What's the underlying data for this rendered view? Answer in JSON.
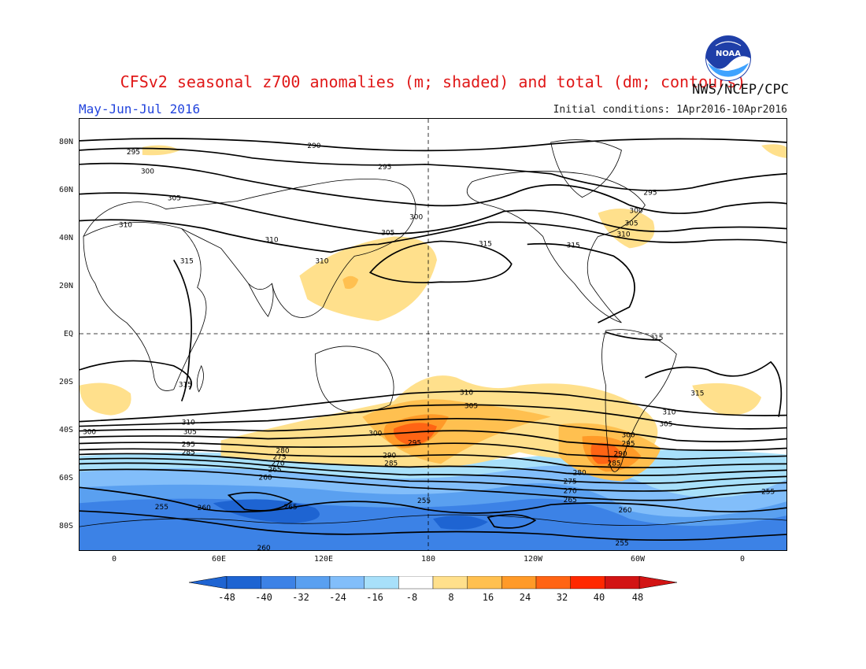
{
  "header": {
    "title": "CFSv2 seasonal z700 anomalies (m; shaded) and total (dm; contours)",
    "agency": "NWS/NCEP/CPC",
    "season": "May-Jun-Jul 2016",
    "initial_conditions": "Initial conditions: 1Apr2016-10Apr2016"
  },
  "logo": {
    "icon": "noaa-logo-icon",
    "text": "NOAA"
  },
  "axes": {
    "lat_labels": [
      "80N",
      "60N",
      "40N",
      "20N",
      "EQ",
      "20S",
      "40S",
      "60S",
      "80S"
    ],
    "lon_labels": [
      "0",
      "60E",
      "120E",
      "180",
      "120W",
      "60W",
      "0"
    ]
  },
  "colorbar": {
    "tick_labels": [
      "-48",
      "-40",
      "-32",
      "-24",
      "-16",
      "-8",
      "8",
      "16",
      "24",
      "32",
      "40",
      "48"
    ],
    "colors": [
      "#1e64d2",
      "#3c82e6",
      "#5aa0f0",
      "#82befa",
      "#a8e0fa",
      "#ffffff",
      "#ffe08c",
      "#ffc050",
      "#ff9a28",
      "#ff6414",
      "#ff2800",
      "#d21414"
    ]
  },
  "contour_labels": [
    {
      "id": "c290-n",
      "text": "290"
    },
    {
      "id": "c295-nw",
      "text": "295"
    },
    {
      "id": "c295-n",
      "text": "295"
    },
    {
      "id": "c295-ne",
      "text": "295"
    },
    {
      "id": "c300-nw",
      "text": "300"
    },
    {
      "id": "c300-n",
      "text": "300"
    },
    {
      "id": "c300-ne",
      "text": "300"
    },
    {
      "id": "c305-nw",
      "text": "305"
    },
    {
      "id": "c305-n",
      "text": "305"
    },
    {
      "id": "c305-ne",
      "text": "305"
    },
    {
      "id": "c310-nw",
      "text": "310"
    },
    {
      "id": "c310-asia",
      "text": "310"
    },
    {
      "id": "c310-tib",
      "text": "310"
    },
    {
      "id": "c310-ne",
      "text": "310"
    },
    {
      "id": "c315-af",
      "text": "315"
    },
    {
      "id": "c315-pac",
      "text": "315"
    },
    {
      "id": "c315-atl",
      "text": "315"
    },
    {
      "id": "c315-sa",
      "text": "315"
    },
    {
      "id": "c315-saf",
      "text": "315"
    },
    {
      "id": "c315-satl",
      "text": "315"
    },
    {
      "id": "c310-s1",
      "text": "310"
    },
    {
      "id": "c310-s2",
      "text": "310"
    },
    {
      "id": "c305-s1",
      "text": "305"
    },
    {
      "id": "c305-s2",
      "text": "305"
    },
    {
      "id": "c305-s3",
      "text": "305"
    },
    {
      "id": "c310-s3",
      "text": "310"
    },
    {
      "id": "c300-s1",
      "text": "300"
    },
    {
      "id": "c300-s2",
      "text": "300"
    },
    {
      "id": "c300-s3",
      "text": "300"
    },
    {
      "id": "c295-s1",
      "text": "295"
    },
    {
      "id": "c295-s2",
      "text": "295"
    },
    {
      "id": "c295-s3",
      "text": "295"
    },
    {
      "id": "c290-s1",
      "text": "290"
    },
    {
      "id": "c290-s2",
      "text": "290"
    },
    {
      "id": "c285-s1",
      "text": "285"
    },
    {
      "id": "c285-s2",
      "text": "285"
    },
    {
      "id": "c285-s3",
      "text": "285"
    },
    {
      "id": "c280-s1",
      "text": "280"
    },
    {
      "id": "c280-s2",
      "text": "280"
    },
    {
      "id": "c275-s1",
      "text": "275"
    },
    {
      "id": "c275-s2",
      "text": "275"
    },
    {
      "id": "c270-s1",
      "text": "270"
    },
    {
      "id": "c270-s2",
      "text": "270"
    },
    {
      "id": "c265-s1",
      "text": "265"
    },
    {
      "id": "c265-s2",
      "text": "265"
    },
    {
      "id": "c265-s3",
      "text": "265"
    },
    {
      "id": "c260-s1",
      "text": "260"
    },
    {
      "id": "c260-s2",
      "text": "260"
    },
    {
      "id": "c260-s3",
      "text": "260"
    },
    {
      "id": "c260-s4",
      "text": "260"
    },
    {
      "id": "c255-s1",
      "text": "255"
    },
    {
      "id": "c255-s2",
      "text": "255"
    },
    {
      "id": "c255-s3",
      "text": "255"
    },
    {
      "id": "c255-s4",
      "text": "255"
    }
  ]
}
